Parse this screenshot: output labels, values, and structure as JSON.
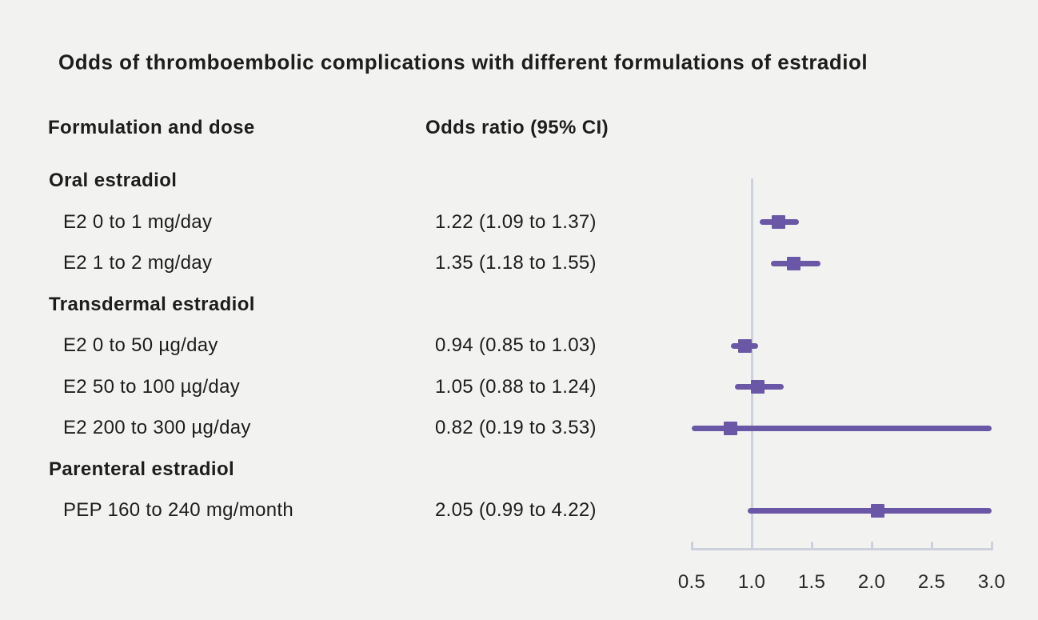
{
  "title": "Odds of thromboembolic complications with different formulations of estradiol",
  "columns": {
    "formulation": "Formulation and dose",
    "odds_ratio": "Odds ratio (95% CI)"
  },
  "chart_data": {
    "type": "forest",
    "title": "Odds of thromboembolic complications with different formulations of estradiol",
    "x_axis": {
      "min": 0.5,
      "max": 3.0,
      "ticks": [
        0.5,
        1.0,
        1.5,
        2.0,
        2.5,
        3.0
      ],
      "tick_labels": [
        "0.5",
        "1.0",
        "1.5",
        "2.0",
        "2.5",
        "3.0"
      ],
      "reference_line": 1.0
    },
    "rows": [
      {
        "label": "Oral estradiol",
        "group": true
      },
      {
        "label": "E2 0 to 1 mg/day",
        "or_text": "1.22 (1.09 to 1.37)",
        "or": 1.22,
        "ci_low": 1.09,
        "ci_high": 1.37
      },
      {
        "label": "E2 1 to 2 mg/day",
        "or_text": "1.35 (1.18 to 1.55)",
        "or": 1.35,
        "ci_low": 1.18,
        "ci_high": 1.55
      },
      {
        "label": "Transdermal estradiol",
        "group": true
      },
      {
        "label": "E2 0 to 50 µg/day",
        "or_text": "0.94 (0.85 to 1.03)",
        "or": 0.94,
        "ci_low": 0.85,
        "ci_high": 1.03
      },
      {
        "label": "E2 50 to 100 µg/day",
        "or_text": "1.05 (0.88 to 1.24)",
        "or": 1.05,
        "ci_low": 0.88,
        "ci_high": 1.24
      },
      {
        "label": "E2 200 to 300 µg/day",
        "or_text": "0.82 (0.19 to 3.53)",
        "or": 0.82,
        "ci_low": 0.19,
        "ci_high": 3.53
      },
      {
        "label": "Parenteral estradiol",
        "group": true
      },
      {
        "label": "PEP 160 to 240 mg/month",
        "or_text": "2.05 (0.99 to 4.22)",
        "or": 2.05,
        "ci_low": 0.99,
        "ci_high": 4.22
      }
    ],
    "colors": {
      "marker": "#6a58a6",
      "ci_line": "#6a58a6",
      "axis": "#ccd1dc",
      "reference_line": "#ccd1dc",
      "text": "#1d1d1d",
      "background": "#f2f2f1"
    }
  }
}
